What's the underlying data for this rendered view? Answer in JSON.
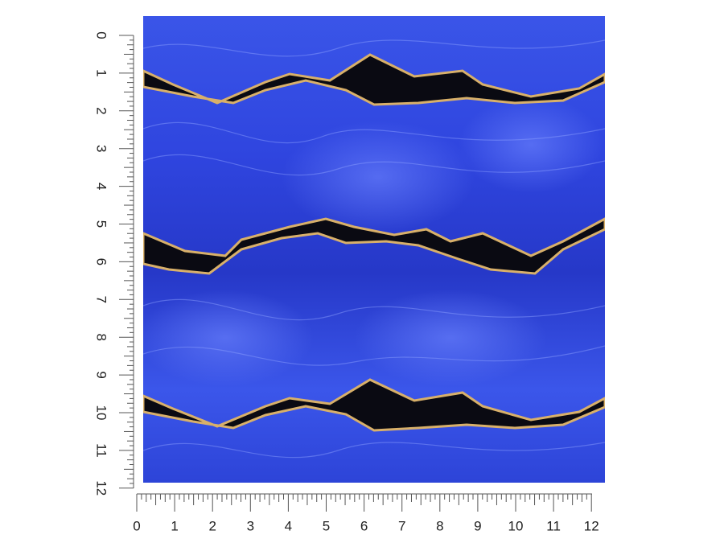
{
  "rulers": {
    "left": {
      "labels": [
        0,
        1,
        2,
        3,
        4,
        5,
        6,
        7,
        8,
        9,
        10,
        11,
        12
      ]
    },
    "bottom": {
      "labels": [
        0,
        1,
        2,
        3,
        4,
        5,
        6,
        7,
        8,
        9,
        10,
        11,
        12
      ]
    }
  }
}
